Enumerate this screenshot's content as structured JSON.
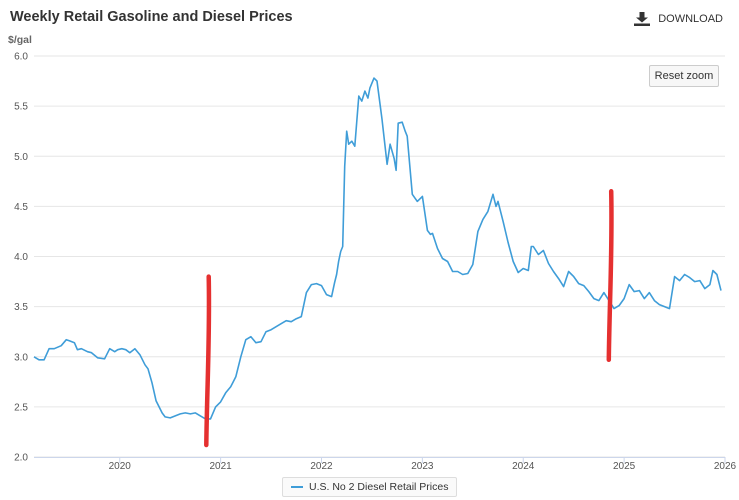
{
  "header": {
    "title": "Weekly Retail Gasoline and Diesel Prices",
    "download_label": "DOWNLOAD",
    "download_icon": "download-icon",
    "reset_zoom_label": "Reset zoom"
  },
  "chart_data": {
    "type": "line",
    "title": "Weekly Retail Gasoline and Diesel Prices",
    "ylabel": "$/gal",
    "xlabel": "",
    "ylim": [
      2.0,
      6.0
    ],
    "xlim": [
      2019.15,
      2026.0
    ],
    "yticks": [
      "2.0",
      "2.5",
      "3.0",
      "3.5",
      "4.0",
      "4.5",
      "5.0",
      "5.5",
      "6.0"
    ],
    "xticks": [
      "2020",
      "2021",
      "2022",
      "2023",
      "2024",
      "2025",
      "2026"
    ],
    "legend_position": "bottom-center",
    "series": [
      {
        "name": "U.S. No 2 Diesel Retail Prices",
        "color": "#3f9dd8",
        "x": [
          2019.15,
          2019.2,
          2019.25,
          2019.3,
          2019.35,
          2019.42,
          2019.47,
          2019.5,
          2019.55,
          2019.58,
          2019.62,
          2019.68,
          2019.72,
          2019.78,
          2019.85,
          2019.9,
          2019.95,
          2019.98,
          2020.02,
          2020.06,
          2020.1,
          2020.15,
          2020.2,
          2020.25,
          2020.28,
          2020.32,
          2020.36,
          2020.42,
          2020.45,
          2020.5,
          2020.6,
          2020.65,
          2020.7,
          2020.75,
          2020.8,
          2020.85,
          2020.9,
          2020.95,
          2021.0,
          2021.05,
          2021.1,
          2021.15,
          2021.2,
          2021.25,
          2021.3,
          2021.35,
          2021.4,
          2021.45,
          2021.5,
          2021.55,
          2021.6,
          2021.65,
          2021.7,
          2021.75,
          2021.8,
          2021.85,
          2021.9,
          2021.95,
          2022.0,
          2022.05,
          2022.1,
          2022.13,
          2022.15,
          2022.17,
          2022.19,
          2022.21,
          2022.23,
          2022.25,
          2022.27,
          2022.3,
          2022.33,
          2022.37,
          2022.4,
          2022.43,
          2022.46,
          2022.48,
          2022.52,
          2022.55,
          2022.6,
          2022.65,
          2022.68,
          2022.72,
          2022.74,
          2022.76,
          2022.8,
          2022.83,
          2022.85,
          2022.9,
          2022.95,
          2023.0,
          2023.05,
          2023.08,
          2023.1,
          2023.15,
          2023.2,
          2023.25,
          2023.3,
          2023.35,
          2023.4,
          2023.45,
          2023.5,
          2023.55,
          2023.6,
          2023.65,
          2023.7,
          2023.73,
          2023.75,
          2023.8,
          2023.85,
          2023.9,
          2023.95,
          2024.0,
          2024.05,
          2024.08,
          2024.1,
          2024.15,
          2024.2,
          2024.25,
          2024.3,
          2024.35,
          2024.4,
          2024.45,
          2024.5,
          2024.55,
          2024.6,
          2024.65,
          2024.7,
          2024.75,
          2024.8,
          2024.85,
          2024.9,
          2024.95,
          2025.0,
          2025.05,
          2025.1,
          2025.15,
          2025.2,
          2025.25,
          2025.3,
          2025.35,
          2025.4,
          2025.45,
          2025.5,
          2025.55,
          2025.6,
          2025.65,
          2025.7,
          2025.75,
          2025.8,
          2025.85,
          2025.88,
          2025.92,
          2025.96
        ],
        "values": [
          3.0,
          2.97,
          2.97,
          3.08,
          3.08,
          3.11,
          3.17,
          3.16,
          3.14,
          3.07,
          3.08,
          3.05,
          3.04,
          2.99,
          2.98,
          3.08,
          3.05,
          3.07,
          3.08,
          3.07,
          3.04,
          3.08,
          3.02,
          2.92,
          2.88,
          2.74,
          2.56,
          2.44,
          2.4,
          2.39,
          2.43,
          2.44,
          2.43,
          2.44,
          2.41,
          2.38,
          2.38,
          2.5,
          2.55,
          2.64,
          2.7,
          2.8,
          3.0,
          3.17,
          3.2,
          3.14,
          3.15,
          3.25,
          3.27,
          3.3,
          3.33,
          3.36,
          3.35,
          3.38,
          3.4,
          3.64,
          3.72,
          3.73,
          3.71,
          3.62,
          3.6,
          3.74,
          3.82,
          3.95,
          4.05,
          4.1,
          4.9,
          5.25,
          5.12,
          5.15,
          5.1,
          5.6,
          5.55,
          5.65,
          5.58,
          5.68,
          5.78,
          5.75,
          5.37,
          4.92,
          5.12,
          4.98,
          4.86,
          5.33,
          5.34,
          5.25,
          5.2,
          4.62,
          4.55,
          4.6,
          4.26,
          4.22,
          4.23,
          4.08,
          3.98,
          3.95,
          3.85,
          3.85,
          3.82,
          3.83,
          3.92,
          4.25,
          4.37,
          4.45,
          4.62,
          4.5,
          4.55,
          4.35,
          4.14,
          3.95,
          3.84,
          3.88,
          3.86,
          4.1,
          4.1,
          4.02,
          4.06,
          3.93,
          3.85,
          3.78,
          3.7,
          3.85,
          3.8,
          3.73,
          3.71,
          3.65,
          3.58,
          3.56,
          3.64,
          3.56,
          3.48,
          3.51,
          3.58,
          3.72,
          3.65,
          3.66,
          3.58,
          3.64,
          3.56,
          3.52,
          3.5,
          3.48,
          3.8,
          3.76,
          3.82,
          3.79,
          3.75,
          3.76,
          3.68,
          3.72,
          3.86,
          3.82,
          3.66
        ]
      }
    ],
    "annotations": [
      {
        "type": "vertical-marker",
        "color": "#e53030",
        "x": 2020.87,
        "y_from": 2.12,
        "y_to": 3.8
      },
      {
        "type": "vertical-marker",
        "color": "#e53030",
        "x": 2024.86,
        "y_from": 2.97,
        "y_to": 4.65
      }
    ]
  }
}
